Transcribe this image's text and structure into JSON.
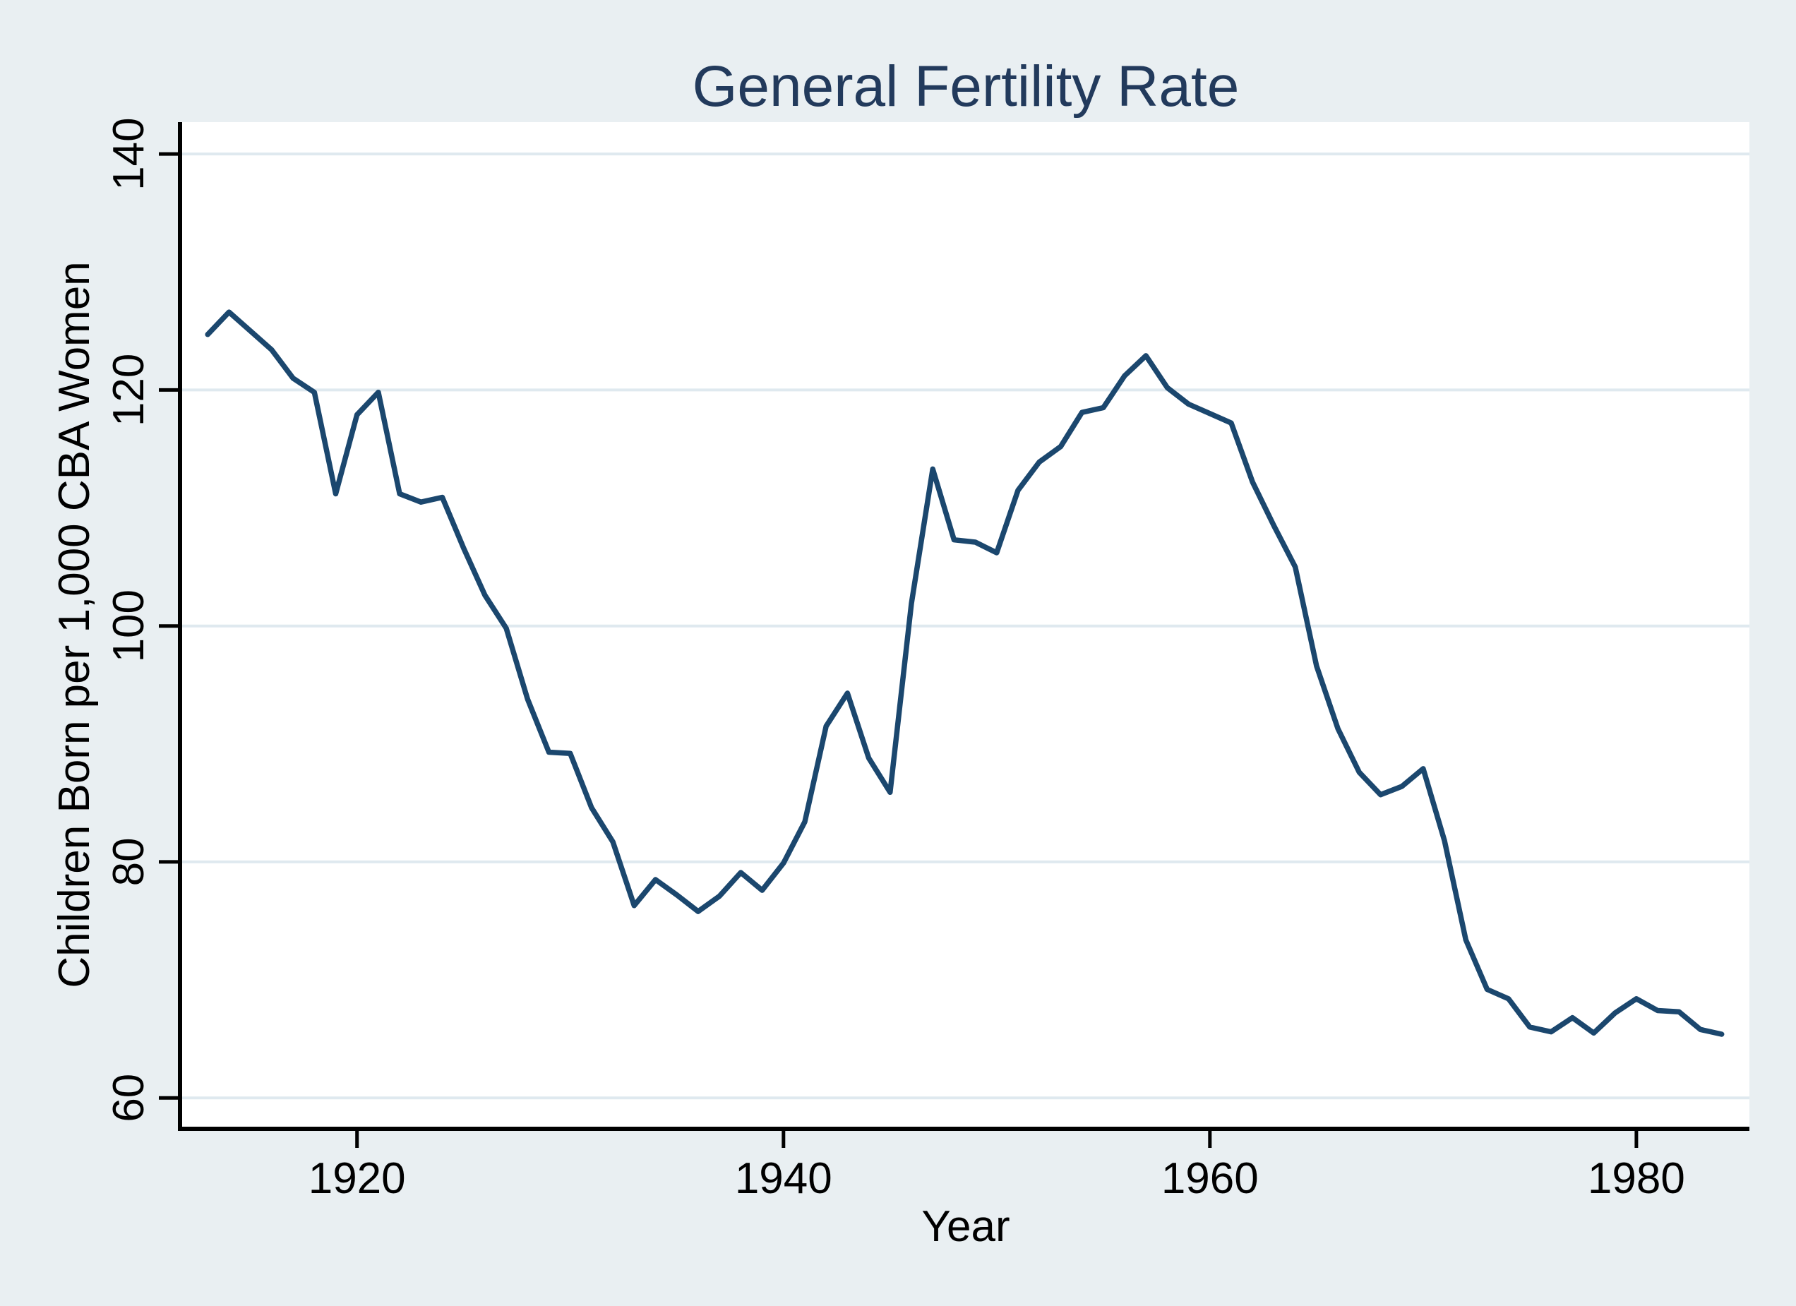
{
  "figure": {
    "background": "#e9eff2"
  },
  "chart_data": {
    "type": "line",
    "title": "General Fertility Rate",
    "xlabel": "Year",
    "ylabel": "Children Born per 1,000 CBA Women",
    "x_ticks": [
      1920,
      1940,
      1960,
      1980
    ],
    "y_ticks": [
      60,
      80,
      100,
      120,
      140
    ],
    "x_domain": [
      1911.8,
      1985.3
    ],
    "y_domain": [
      57.5,
      142.7
    ],
    "grid": true,
    "legend_position": "none",
    "colors": {
      "line": "#1b476e",
      "title": "#223a5c",
      "plot_background": "#ffffff",
      "page_background": "#e9eff2",
      "grid": "#dfe9ef",
      "axis": "#000000",
      "tick_label": "#000000"
    },
    "series": [
      {
        "name": "general-fertility-rate",
        "x": [
          1913,
          1914,
          1915,
          1916,
          1917,
          1918,
          1919,
          1920,
          1921,
          1922,
          1923,
          1924,
          1925,
          1926,
          1927,
          1928,
          1929,
          1930,
          1931,
          1932,
          1933,
          1934,
          1935,
          1936,
          1937,
          1938,
          1939,
          1940,
          1941,
          1942,
          1943,
          1944,
          1945,
          1946,
          1947,
          1948,
          1949,
          1950,
          1951,
          1952,
          1953,
          1954,
          1955,
          1956,
          1957,
          1958,
          1959,
          1960,
          1961,
          1962,
          1963,
          1964,
          1965,
          1966,
          1967,
          1968,
          1969,
          1970,
          1971,
          1972,
          1973,
          1974,
          1975,
          1976,
          1977,
          1978,
          1979,
          1980,
          1981,
          1982,
          1983,
          1984
        ],
        "values": [
          124.7,
          126.6,
          125.0,
          123.4,
          121.0,
          119.8,
          111.2,
          117.9,
          119.8,
          111.2,
          110.5,
          110.9,
          106.6,
          102.6,
          99.8,
          93.8,
          89.3,
          89.2,
          84.6,
          81.7,
          76.3,
          78.5,
          77.2,
          75.8,
          77.1,
          79.1,
          77.6,
          79.9,
          83.4,
          91.5,
          94.3,
          88.8,
          85.9,
          101.9,
          113.3,
          107.3,
          107.1,
          106.2,
          111.5,
          113.9,
          115.2,
          118.1,
          118.5,
          121.2,
          122.9,
          120.2,
          118.8,
          118.0,
          117.2,
          112.2,
          108.5,
          105.0,
          96.6,
          91.3,
          87.6,
          85.7,
          86.4,
          87.9,
          81.8,
          73.4,
          69.2,
          68.4,
          66.0,
          65.6,
          66.8,
          65.5,
          67.2,
          68.4,
          67.4,
          67.3,
          65.8,
          65.4
        ]
      }
    ]
  }
}
